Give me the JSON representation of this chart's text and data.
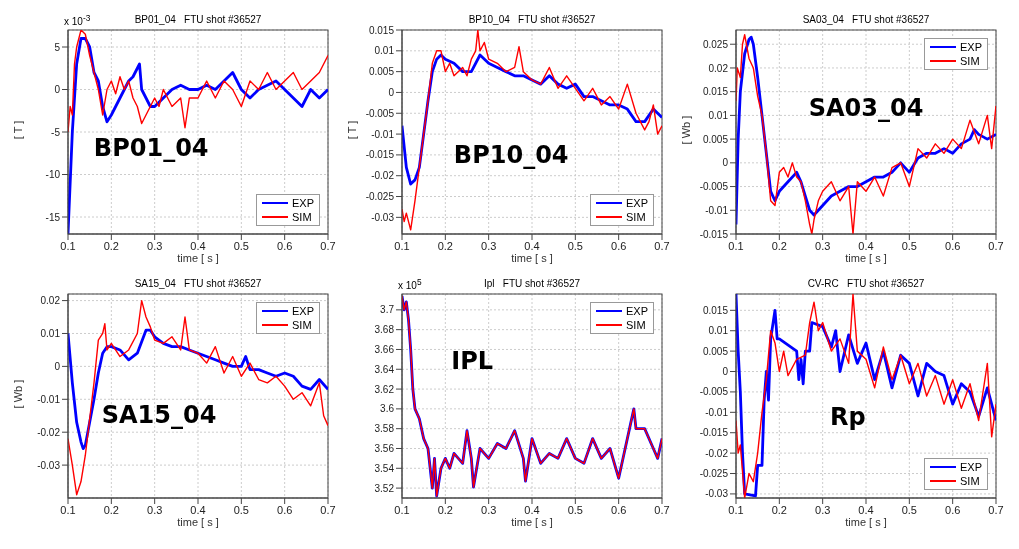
{
  "chart_data": [
    {
      "type": "line",
      "title": "BP01_04   FTU shot #36527",
      "xlabel": "time [ s ]",
      "ylabel": "[ T ]",
      "annotations": [
        "x 10$^{-3}$",
        "BP01_04"
      ],
      "xlim": [
        0.1,
        0.7
      ],
      "xticks": [
        0.1,
        0.2,
        0.3,
        0.4,
        0.5,
        0.6,
        0.7
      ],
      "ylim": [
        -17,
        7
      ],
      "yticks": [
        -15,
        -10,
        -5,
        0,
        5
      ],
      "grid": true,
      "legend": "bottom right",
      "series": [
        {
          "name": "EXP",
          "color": "#0000ff",
          "x": [
            0.1,
            0.11,
            0.12,
            0.13,
            0.14,
            0.15,
            0.16,
            0.17,
            0.18,
            0.19,
            0.2,
            0.21,
            0.22,
            0.23,
            0.24,
            0.25,
            0.26,
            0.265,
            0.27,
            0.28,
            0.29,
            0.3,
            0.32,
            0.34,
            0.36,
            0.38,
            0.4,
            0.42,
            0.44,
            0.46,
            0.48,
            0.5,
            0.52,
            0.54,
            0.56,
            0.58,
            0.6,
            0.62,
            0.64,
            0.66,
            0.68,
            0.7
          ],
          "values": [
            -17,
            -5,
            3,
            6,
            6,
            5,
            2,
            1,
            -2,
            -3.8,
            -3,
            -2,
            -1,
            0,
            1,
            1.5,
            2.5,
            3,
            0,
            -1,
            -2,
            -2,
            -1,
            0,
            0.5,
            0,
            0,
            0.5,
            0,
            1,
            2,
            0,
            -1,
            0,
            0.5,
            1,
            0,
            -1,
            -2,
            0,
            -1,
            0
          ]
        },
        {
          "name": "SIM",
          "color": "#ff0000",
          "x": [
            0.1,
            0.105,
            0.11,
            0.115,
            0.12,
            0.13,
            0.14,
            0.15,
            0.16,
            0.17,
            0.18,
            0.19,
            0.2,
            0.21,
            0.22,
            0.23,
            0.24,
            0.25,
            0.26,
            0.27,
            0.28,
            0.29,
            0.3,
            0.31,
            0.32,
            0.34,
            0.36,
            0.37,
            0.38,
            0.4,
            0.42,
            0.44,
            0.46,
            0.48,
            0.5,
            0.52,
            0.54,
            0.56,
            0.58,
            0.6,
            0.62,
            0.64,
            0.66,
            0.68,
            0.7
          ],
          "values": [
            -5,
            -2,
            -3,
            3,
            5,
            7,
            6.5,
            4,
            2,
            0,
            -3,
            0,
            1,
            -0.5,
            1.5,
            0,
            1,
            -1,
            -2,
            -4,
            -3,
            -2,
            -1,
            -2,
            0,
            -2,
            -1,
            -4.5,
            -1,
            -1,
            1,
            -1,
            1,
            0,
            -2,
            1,
            0,
            2,
            0,
            1,
            2,
            0,
            1,
            2,
            4
          ]
        }
      ]
    },
    {
      "type": "line",
      "title": "BP10_04   FTU shot #36527",
      "xlabel": "time [ s ]",
      "ylabel": "[ T ]",
      "annotations": [
        "BP10_04"
      ],
      "xlim": [
        0.1,
        0.7
      ],
      "xticks": [
        0.1,
        0.2,
        0.3,
        0.4,
        0.5,
        0.6,
        0.7
      ],
      "ylim": [
        -0.034,
        0.015
      ],
      "yticks": [
        -0.03,
        -0.025,
        -0.02,
        -0.015,
        -0.01,
        -0.005,
        0,
        0.005,
        0.01,
        0.015
      ],
      "grid": true,
      "legend": "bottom right",
      "series": [
        {
          "name": "EXP",
          "color": "#0000ff",
          "x": [
            0.1,
            0.11,
            0.12,
            0.13,
            0.14,
            0.15,
            0.16,
            0.17,
            0.18,
            0.19,
            0.2,
            0.22,
            0.24,
            0.26,
            0.28,
            0.3,
            0.32,
            0.34,
            0.36,
            0.38,
            0.4,
            0.42,
            0.44,
            0.46,
            0.48,
            0.5,
            0.52,
            0.54,
            0.56,
            0.58,
            0.6,
            0.62,
            0.64,
            0.66,
            0.68,
            0.7
          ],
          "values": [
            -0.008,
            -0.018,
            -0.022,
            -0.021,
            -0.018,
            -0.01,
            -0.002,
            0.005,
            0.008,
            0.009,
            0.008,
            0.007,
            0.005,
            0.005,
            0.009,
            0.007,
            0.006,
            0.005,
            0.004,
            0.004,
            0.003,
            0.002,
            0.004,
            0.002,
            0.001,
            0.002,
            -0.001,
            -0.001,
            -0.002,
            -0.003,
            -0.003,
            -0.004,
            -0.007,
            -0.007,
            -0.004,
            -0.006
          ]
        },
        {
          "name": "SIM",
          "color": "#ff0000",
          "x": [
            0.1,
            0.105,
            0.11,
            0.12,
            0.13,
            0.14,
            0.15,
            0.16,
            0.17,
            0.18,
            0.19,
            0.2,
            0.21,
            0.22,
            0.24,
            0.25,
            0.26,
            0.27,
            0.275,
            0.28,
            0.29,
            0.3,
            0.32,
            0.34,
            0.36,
            0.37,
            0.38,
            0.4,
            0.42,
            0.44,
            0.46,
            0.48,
            0.5,
            0.52,
            0.54,
            0.56,
            0.58,
            0.6,
            0.62,
            0.64,
            0.66,
            0.67,
            0.68,
            0.69,
            0.7
          ],
          "values": [
            -0.028,
            -0.031,
            -0.029,
            -0.033,
            -0.026,
            -0.018,
            -0.01,
            -0.002,
            0.007,
            0.01,
            0.01,
            0.005,
            0.007,
            0.004,
            0.006,
            0.004,
            0.008,
            0.01,
            0.015,
            0.01,
            0.012,
            0.008,
            0.007,
            0.005,
            0.006,
            0.011,
            0.005,
            0.003,
            0.002,
            0.006,
            0.001,
            0.004,
            0.001,
            -0.002,
            0.001,
            -0.003,
            -0.001,
            -0.004,
            0.002,
            -0.005,
            -0.009,
            -0.007,
            -0.003,
            -0.01,
            -0.008
          ]
        }
      ]
    },
    {
      "type": "line",
      "title": "SA03_04   FTU shot #36527",
      "xlabel": "time [ s ]",
      "ylabel": "[ Wb ]",
      "annotations": [
        "SA03_04"
      ],
      "xlim": [
        0.1,
        0.7
      ],
      "xticks": [
        0.1,
        0.2,
        0.3,
        0.4,
        0.5,
        0.6,
        0.7
      ],
      "ylim": [
        -0.015,
        0.028
      ],
      "yticks": [
        -0.015,
        -0.01,
        -0.005,
        0,
        0.005,
        0.01,
        0.015,
        0.02,
        0.025
      ],
      "grid": true,
      "legend": "top right",
      "series": [
        {
          "name": "EXP",
          "color": "#0000ff",
          "x": [
            0.1,
            0.105,
            0.11,
            0.12,
            0.13,
            0.135,
            0.14,
            0.15,
            0.16,
            0.17,
            0.18,
            0.19,
            0.2,
            0.22,
            0.24,
            0.25,
            0.26,
            0.27,
            0.28,
            0.3,
            0.32,
            0.34,
            0.36,
            0.38,
            0.4,
            0.42,
            0.44,
            0.46,
            0.48,
            0.5,
            0.52,
            0.54,
            0.56,
            0.58,
            0.6,
            0.62,
            0.64,
            0.65,
            0.66,
            0.68,
            0.7
          ],
          "values": [
            -0.013,
            0.005,
            0.015,
            0.023,
            0.026,
            0.0265,
            0.025,
            0.018,
            0.01,
            0.002,
            -0.006,
            -0.008,
            -0.006,
            -0.004,
            -0.002,
            -0.004,
            -0.007,
            -0.01,
            -0.011,
            -0.009,
            -0.007,
            -0.006,
            -0.005,
            -0.005,
            -0.004,
            -0.003,
            -0.003,
            -0.002,
            0,
            -0.002,
            0.001,
            0.002,
            0.002,
            0.003,
            0.002,
            0.004,
            0.005,
            0.007,
            0.006,
            0.005,
            0.006
          ]
        },
        {
          "name": "SIM",
          "color": "#ff0000",
          "x": [
            0.1,
            0.103,
            0.11,
            0.115,
            0.12,
            0.13,
            0.14,
            0.15,
            0.16,
            0.17,
            0.18,
            0.19,
            0.2,
            0.21,
            0.22,
            0.23,
            0.24,
            0.25,
            0.26,
            0.27,
            0.275,
            0.28,
            0.29,
            0.3,
            0.32,
            0.34,
            0.36,
            0.37,
            0.38,
            0.4,
            0.42,
            0.44,
            0.46,
            0.48,
            0.5,
            0.52,
            0.54,
            0.56,
            0.58,
            0.6,
            0.62,
            0.64,
            0.66,
            0.68,
            0.69,
            0.7
          ],
          "values": [
            0.013,
            0.02,
            0.018,
            0.025,
            0.027,
            0.022,
            0.02,
            0.014,
            0.01,
            0.002,
            -0.008,
            -0.009,
            -0.002,
            -0.001,
            -0.003,
            0,
            -0.003,
            -0.004,
            -0.008,
            -0.013,
            -0.015,
            -0.012,
            -0.008,
            -0.006,
            -0.004,
            -0.008,
            -0.005,
            -0.015,
            -0.004,
            -0.006,
            -0.003,
            -0.007,
            -0.001,
            0,
            -0.005,
            0.003,
            0.001,
            0.004,
            0.002,
            0.005,
            0.003,
            0.009,
            0.004,
            0.01,
            0.003,
            0.012
          ]
        }
      ]
    },
    {
      "type": "line",
      "title": "SA15_04   FTU shot #36527",
      "xlabel": "time [ s ]",
      "ylabel": "[ Wb ]",
      "annotations": [
        "SA15_04"
      ],
      "xlim": [
        0.1,
        0.7
      ],
      "xticks": [
        0.1,
        0.2,
        0.3,
        0.4,
        0.5,
        0.6,
        0.7
      ],
      "ylim": [
        -0.04,
        0.022
      ],
      "yticks": [
        -0.03,
        -0.02,
        -0.01,
        0,
        0.01,
        0.02
      ],
      "grid": true,
      "legend": "top right",
      "series": [
        {
          "name": "EXP",
          "color": "#0000ff",
          "x": [
            0.1,
            0.11,
            0.12,
            0.13,
            0.135,
            0.14,
            0.15,
            0.16,
            0.17,
            0.18,
            0.19,
            0.2,
            0.22,
            0.24,
            0.26,
            0.28,
            0.29,
            0.3,
            0.32,
            0.34,
            0.36,
            0.38,
            0.4,
            0.42,
            0.44,
            0.46,
            0.48,
            0.5,
            0.51,
            0.52,
            0.54,
            0.56,
            0.58,
            0.6,
            0.62,
            0.64,
            0.66,
            0.68,
            0.7
          ],
          "values": [
            0.01,
            -0.005,
            -0.017,
            -0.023,
            -0.025,
            -0.024,
            -0.017,
            -0.01,
            -0.002,
            0.004,
            0.006,
            0.006,
            0.005,
            0.002,
            0.004,
            0.011,
            0.011,
            0.009,
            0.007,
            0.006,
            0.006,
            0.005,
            0.004,
            0.003,
            0.002,
            0.001,
            0,
            0,
            0.003,
            -0.001,
            -0.001,
            -0.002,
            -0.003,
            -0.002,
            -0.003,
            -0.006,
            -0.007,
            -0.004,
            -0.007
          ]
        },
        {
          "name": "SIM",
          "color": "#ff0000",
          "x": [
            0.1,
            0.11,
            0.12,
            0.13,
            0.14,
            0.15,
            0.16,
            0.17,
            0.18,
            0.185,
            0.19,
            0.2,
            0.22,
            0.24,
            0.26,
            0.27,
            0.28,
            0.29,
            0.3,
            0.32,
            0.34,
            0.36,
            0.37,
            0.38,
            0.4,
            0.42,
            0.44,
            0.46,
            0.48,
            0.5,
            0.52,
            0.54,
            0.56,
            0.58,
            0.6,
            0.62,
            0.64,
            0.66,
            0.68,
            0.69,
            0.7
          ],
          "values": [
            -0.022,
            -0.03,
            -0.039,
            -0.035,
            -0.027,
            -0.016,
            -0.005,
            0.008,
            0.01,
            0.013,
            0.005,
            0.007,
            0.003,
            0.005,
            0.01,
            0.02,
            0.015,
            0.012,
            0.008,
            0.007,
            0.009,
            0.005,
            0.015,
            0.005,
            0.004,
            0.001,
            0.006,
            -0.002,
            0.003,
            -0.003,
            0.001,
            -0.004,
            -0.005,
            -0.003,
            -0.006,
            -0.01,
            -0.008,
            -0.012,
            -0.005,
            -0.015,
            -0.018
          ]
        }
      ]
    },
    {
      "type": "line",
      "title": "Ipl   FTU shot #36527",
      "xlabel": "time [ s ]",
      "annotations": [
        "x 10$^{5}$",
        "IPL"
      ],
      "xlim": [
        0.1,
        0.7
      ],
      "xticks": [
        0.1,
        0.2,
        0.3,
        0.4,
        0.5,
        0.6,
        0.7
      ],
      "ylim": [
        3.51,
        3.716
      ],
      "yticks": [
        3.52,
        3.54,
        3.56,
        3.58,
        3.6,
        3.62,
        3.64,
        3.66,
        3.68,
        3.7
      ],
      "grid": true,
      "legend": "top right",
      "series": [
        {
          "name": "EXP",
          "color": "#0000ff",
          "x": [
            0.1,
            0.105,
            0.11,
            0.115,
            0.12,
            0.125,
            0.13,
            0.14,
            0.15,
            0.16,
            0.17,
            0.175,
            0.18,
            0.19,
            0.2,
            0.21,
            0.22,
            0.24,
            0.25,
            0.26,
            0.265,
            0.28,
            0.3,
            0.32,
            0.34,
            0.36,
            0.38,
            0.385,
            0.4,
            0.42,
            0.44,
            0.46,
            0.48,
            0.5,
            0.52,
            0.54,
            0.56,
            0.58,
            0.6,
            0.62,
            0.635,
            0.64,
            0.66,
            0.68,
            0.69,
            0.7
          ],
          "values": [
            3.714,
            3.7,
            3.708,
            3.69,
            3.66,
            3.62,
            3.6,
            3.59,
            3.57,
            3.56,
            3.52,
            3.55,
            3.512,
            3.54,
            3.55,
            3.54,
            3.555,
            3.545,
            3.578,
            3.55,
            3.521,
            3.56,
            3.55,
            3.565,
            3.56,
            3.578,
            3.55,
            3.527,
            3.57,
            3.545,
            3.555,
            3.55,
            3.57,
            3.55,
            3.545,
            3.57,
            3.55,
            3.56,
            3.53,
            3.57,
            3.6,
            3.58,
            3.58,
            3.56,
            3.55,
            3.57
          ]
        },
        {
          "name": "SIM",
          "color": "#ff0000",
          "x": [
            0.1,
            0.105,
            0.11,
            0.115,
            0.12,
            0.125,
            0.13,
            0.14,
            0.15,
            0.16,
            0.17,
            0.175,
            0.18,
            0.19,
            0.2,
            0.21,
            0.22,
            0.24,
            0.25,
            0.26,
            0.265,
            0.28,
            0.3,
            0.32,
            0.34,
            0.36,
            0.38,
            0.385,
            0.4,
            0.42,
            0.44,
            0.46,
            0.48,
            0.5,
            0.52,
            0.54,
            0.56,
            0.58,
            0.6,
            0.62,
            0.635,
            0.64,
            0.66,
            0.68,
            0.69,
            0.7
          ],
          "values": [
            3.714,
            3.7,
            3.708,
            3.69,
            3.66,
            3.62,
            3.6,
            3.59,
            3.57,
            3.56,
            3.52,
            3.55,
            3.512,
            3.54,
            3.55,
            3.54,
            3.555,
            3.545,
            3.578,
            3.55,
            3.521,
            3.56,
            3.55,
            3.565,
            3.56,
            3.578,
            3.55,
            3.527,
            3.57,
            3.545,
            3.555,
            3.55,
            3.57,
            3.55,
            3.545,
            3.57,
            3.55,
            3.56,
            3.53,
            3.57,
            3.6,
            3.58,
            3.58,
            3.56,
            3.55,
            3.57
          ]
        }
      ]
    },
    {
      "type": "line",
      "title": "CV-RC   FTU shot #36527",
      "xlabel": "time [ s ]",
      "annotations": [
        "Rp"
      ],
      "xlim": [
        0.1,
        0.7
      ],
      "xticks": [
        0.1,
        0.2,
        0.3,
        0.4,
        0.5,
        0.6,
        0.7
      ],
      "ylim": [
        -0.031,
        0.019
      ],
      "yticks": [
        -0.03,
        -0.025,
        -0.02,
        -0.015,
        -0.01,
        -0.005,
        0,
        0.005,
        0.01,
        0.015
      ],
      "grid": true,
      "legend": "bottom right",
      "series": [
        {
          "name": "EXP",
          "color": "#0000ff",
          "x": [
            0.1,
            0.105,
            0.11,
            0.115,
            0.12,
            0.145,
            0.15,
            0.16,
            0.165,
            0.17,
            0.175,
            0.18,
            0.19,
            0.195,
            0.2,
            0.24,
            0.245,
            0.25,
            0.255,
            0.26,
            0.27,
            0.275,
            0.3,
            0.32,
            0.33,
            0.34,
            0.36,
            0.38,
            0.4,
            0.42,
            0.44,
            0.46,
            0.48,
            0.5,
            0.52,
            0.54,
            0.56,
            0.58,
            0.6,
            0.62,
            0.64,
            0.66,
            0.68,
            0.7
          ],
          "values": [
            0.019,
            0.005,
            -0.005,
            -0.02,
            -0.03,
            -0.0305,
            -0.023,
            -0.023,
            -0.007,
            0,
            -0.007,
            0.008,
            0.015,
            0.008,
            0.008,
            0.005,
            -0.002,
            0.003,
            -0.003,
            0.005,
            0.005,
            0.012,
            0.011,
            0.006,
            0.01,
            0,
            0.009,
            0.002,
            0.007,
            -0.002,
            0.005,
            -0.004,
            0.004,
            0.002,
            -0.006,
            0.002,
            0,
            -0.001,
            -0.008,
            -0.003,
            -0.005,
            -0.011,
            -0.004,
            -0.012
          ]
        },
        {
          "name": "SIM",
          "color": "#ff0000",
          "x": [
            0.1,
            0.105,
            0.11,
            0.12,
            0.13,
            0.14,
            0.15,
            0.16,
            0.17,
            0.18,
            0.19,
            0.2,
            0.21,
            0.22,
            0.24,
            0.26,
            0.27,
            0.28,
            0.29,
            0.3,
            0.32,
            0.34,
            0.36,
            0.37,
            0.38,
            0.4,
            0.42,
            0.44,
            0.46,
            0.48,
            0.5,
            0.52,
            0.54,
            0.56,
            0.58,
            0.6,
            0.62,
            0.64,
            0.66,
            0.68,
            0.69,
            0.7
          ],
          "values": [
            -0.012,
            -0.02,
            -0.018,
            -0.031,
            -0.025,
            -0.027,
            -0.02,
            -0.01,
            -0.002,
            0.01,
            0.007,
            0,
            0.005,
            -0.001,
            0.003,
            0.004,
            0.012,
            0.017,
            0.01,
            0.012,
            0.005,
            0.008,
            0.002,
            0.019,
            0.005,
            0.003,
            -0.004,
            0.006,
            -0.002,
            0.004,
            -0.003,
            0.002,
            -0.006,
            -0.001,
            -0.008,
            -0.002,
            -0.009,
            -0.003,
            -0.012,
            0.002,
            -0.016,
            -0.008
          ]
        }
      ]
    }
  ]
}
